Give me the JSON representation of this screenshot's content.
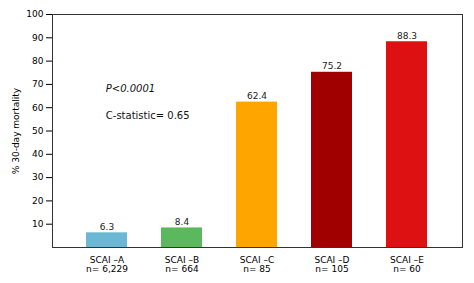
{
  "chart_data": {
    "type": "bar",
    "categories": [
      "SCAI –A\nn= 6,229",
      "SCAI –B\nn= 664",
      "SCAI –C\nn= 85",
      "SCAI –D\nn= 105",
      "SCAI –E\nn= 60"
    ],
    "values": [
      6.3,
      8.4,
      62.4,
      75.2,
      88.3
    ],
    "colors": [
      "#6BB8D4",
      "#5CB85C",
      "#FFA500",
      "#A00000",
      "#DD1111"
    ],
    "ylabel": "% 30-day mortality",
    "ylim": [
      0,
      100
    ],
    "yticks": [
      10,
      20,
      30,
      40,
      50,
      60,
      70,
      80,
      90,
      100
    ],
    "data_labels": true,
    "grid": false,
    "annotations": [
      "P<0.0001",
      "C-statistic= 0.65"
    ]
  }
}
